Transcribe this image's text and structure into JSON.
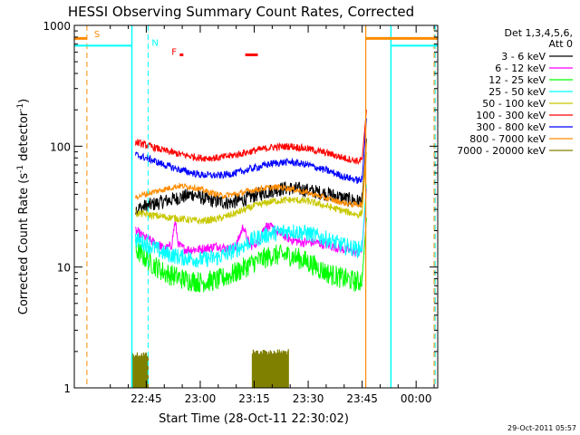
{
  "chart_data": {
    "type": "line",
    "title": "HESSI Observing Summary Count Rates, Corrected",
    "xlabel": "Start Time (28-Oct-11 22:30:02)",
    "ylabel_main": "Corrected Count Rate (s",
    "ylabel_sup1": "-1",
    "ylabel_mid": " detector",
    "ylabel_sup2": "-1",
    "ylabel_end": ")",
    "footer_timestamp": "29-Oct-2011 05:57",
    "x_unit": "minutes since 22:30",
    "xlim": [
      -5,
      96
    ],
    "ylim": [
      1,
      1000
    ],
    "y_scale": "log",
    "x_ticks": [
      {
        "x": 15,
        "label": "22:45"
      },
      {
        "x": 30,
        "label": "23:00"
      },
      {
        "x": 45,
        "label": "23:15"
      },
      {
        "x": 60,
        "label": "23:30"
      },
      {
        "x": 75,
        "label": "23:45"
      },
      {
        "x": 90,
        "label": "00:00"
      }
    ],
    "y_ticks": [
      {
        "y": 1,
        "label": "1"
      },
      {
        "y": 10,
        "label": "10"
      },
      {
        "y": 100,
        "label": "100"
      },
      {
        "y": 1000,
        "label": "1000"
      }
    ],
    "legend_title_1": "Det 1,3,4,5,6,",
    "legend_title_2": "Att 0",
    "series": [
      {
        "name": "3 - 6 keV",
        "color": "#000000",
        "points": [
          [
            12,
            30
          ],
          [
            15,
            32
          ],
          [
            20,
            35
          ],
          [
            25,
            38
          ],
          [
            28,
            40
          ],
          [
            32,
            36
          ],
          [
            38,
            34
          ],
          [
            42,
            36
          ],
          [
            46,
            40
          ],
          [
            50,
            43
          ],
          [
            54,
            45
          ],
          [
            58,
            44
          ],
          [
            62,
            42
          ],
          [
            66,
            40
          ],
          [
            70,
            37
          ],
          [
            74,
            35
          ],
          [
            75,
            36
          ]
        ],
        "noise": 0.06
      },
      {
        "name": "6 - 12 keV",
        "color": "#ff00ff",
        "points": [
          [
            12,
            20
          ],
          [
            14,
            18
          ],
          [
            17,
            16
          ],
          [
            19,
            15
          ],
          [
            20,
            14
          ],
          [
            22,
            15
          ],
          [
            23,
            24
          ],
          [
            24,
            15
          ],
          [
            26,
            14
          ],
          [
            30,
            14
          ],
          [
            35,
            15
          ],
          [
            38,
            14
          ],
          [
            40,
            15
          ],
          [
            42,
            22
          ],
          [
            43,
            17
          ],
          [
            44,
            15
          ],
          [
            46,
            16
          ],
          [
            48,
            22
          ],
          [
            50,
            21
          ],
          [
            52,
            19
          ],
          [
            55,
            17
          ],
          [
            58,
            16
          ],
          [
            62,
            16
          ],
          [
            66,
            15
          ],
          [
            70,
            14
          ],
          [
            74,
            13
          ],
          [
            75,
            14
          ]
        ],
        "noise": 0.04
      },
      {
        "name": "12 - 25 keV",
        "color": "#00ff00",
        "points": [
          [
            12,
            14
          ],
          [
            16,
            11
          ],
          [
            20,
            9
          ],
          [
            25,
            8
          ],
          [
            30,
            7.5
          ],
          [
            35,
            7.8
          ],
          [
            40,
            9
          ],
          [
            45,
            11
          ],
          [
            50,
            12.5
          ],
          [
            55,
            12.5
          ],
          [
            60,
            11
          ],
          [
            65,
            9
          ],
          [
            70,
            8
          ],
          [
            74,
            7.5
          ],
          [
            75,
            8
          ]
        ],
        "noise": 0.09
      },
      {
        "name": "25 - 50 keV",
        "color": "#00ffff",
        "points": [
          [
            12,
            17
          ],
          [
            16,
            15
          ],
          [
            20,
            13
          ],
          [
            25,
            12
          ],
          [
            30,
            11.5
          ],
          [
            35,
            12
          ],
          [
            40,
            14
          ],
          [
            45,
            17
          ],
          [
            50,
            19
          ],
          [
            55,
            20
          ],
          [
            60,
            19
          ],
          [
            65,
            17
          ],
          [
            70,
            15
          ],
          [
            74,
            14
          ],
          [
            75,
            15
          ]
        ],
        "noise": 0.07
      },
      {
        "name": "50 - 100 keV",
        "color": "#c8c800",
        "points": [
          [
            12,
            28
          ],
          [
            16,
            27
          ],
          [
            20,
            26
          ],
          [
            25,
            25
          ],
          [
            30,
            24
          ],
          [
            35,
            25
          ],
          [
            40,
            28
          ],
          [
            45,
            32
          ],
          [
            50,
            35
          ],
          [
            55,
            36
          ],
          [
            60,
            35
          ],
          [
            65,
            32
          ],
          [
            70,
            29
          ],
          [
            74,
            27
          ],
          [
            75,
            28
          ]
        ],
        "noise": 0.03
      },
      {
        "name": "100 - 300 keV",
        "color": "#ff0000",
        "points": [
          [
            12,
            108
          ],
          [
            16,
            100
          ],
          [
            20,
            92
          ],
          [
            25,
            85
          ],
          [
            30,
            80
          ],
          [
            35,
            80
          ],
          [
            40,
            85
          ],
          [
            45,
            92
          ],
          [
            50,
            98
          ],
          [
            55,
            100
          ],
          [
            60,
            95
          ],
          [
            65,
            88
          ],
          [
            70,
            80
          ],
          [
            74,
            75
          ],
          [
            75,
            78
          ]
        ],
        "noise": 0.03
      },
      {
        "name": "300 - 800 keV",
        "color": "#0000ff",
        "points": [
          [
            12,
            85
          ],
          [
            16,
            78
          ],
          [
            20,
            70
          ],
          [
            25,
            63
          ],
          [
            30,
            58
          ],
          [
            35,
            57
          ],
          [
            40,
            60
          ],
          [
            45,
            66
          ],
          [
            50,
            72
          ],
          [
            55,
            74
          ],
          [
            60,
            70
          ],
          [
            65,
            63
          ],
          [
            70,
            56
          ],
          [
            74,
            52
          ],
          [
            75,
            53
          ]
        ],
        "noise": 0.03
      },
      {
        "name": "800 - 7000 keV",
        "color": "#ff8c00",
        "points": [
          [
            12,
            38
          ],
          [
            16,
            41
          ],
          [
            20,
            44
          ],
          [
            24,
            47
          ],
          [
            28,
            46
          ],
          [
            32,
            42
          ],
          [
            36,
            39
          ],
          [
            40,
            40
          ],
          [
            44,
            43
          ],
          [
            48,
            45
          ],
          [
            52,
            46
          ],
          [
            56,
            44
          ],
          [
            60,
            41
          ],
          [
            64,
            38
          ],
          [
            68,
            35
          ],
          [
            72,
            33
          ],
          [
            75,
            33
          ]
        ],
        "noise": 0.025
      },
      {
        "name": "7000 - 20000 keV",
        "color": "#808000",
        "points": [],
        "noise": 0
      }
    ],
    "bars_olive": [
      {
        "x0": 11,
        "x1": 15.5,
        "y": 2
      },
      {
        "x0": 44.5,
        "x1": 54.5,
        "y": 2.1
      }
    ],
    "end_spike": {
      "x0": 75,
      "x1": 76.2
    },
    "orange_hline": {
      "y": 780,
      "segments": [
        [
          -5,
          -1.5
        ],
        [
          76,
          96
        ]
      ]
    },
    "cyan_hline": {
      "y": 680,
      "segments": [
        [
          -5,
          11
        ],
        [
          83,
          96
        ]
      ]
    },
    "orange_vlines_dashed": [
      -1.5,
      95
    ],
    "orange_vlines_solid": [
      76
    ],
    "cyan_vlines_solid": [
      11,
      83
    ],
    "cyan_vlines_dashed": [
      15.5,
      95.3
    ],
    "flags": [
      {
        "text": "S",
        "x": 0.5,
        "y": 800,
        "color": "#ff8c00"
      },
      {
        "text": "N",
        "x": 16.5,
        "y": 680,
        "color": "#00ffff"
      },
      {
        "text": "F",
        "x": 22,
        "y": 570,
        "color": "#ff0000"
      }
    ],
    "flare_marks": [
      {
        "x0": 24.3,
        "x1": 25.3,
        "y": 570,
        "color": "#ff0000"
      },
      {
        "x0": 42.5,
        "x1": 46,
        "y": 570,
        "color": "#ff0000"
      }
    ]
  }
}
